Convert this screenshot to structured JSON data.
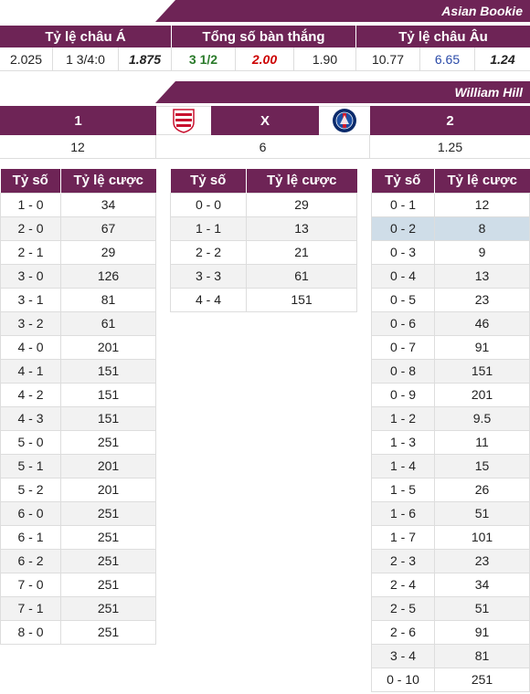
{
  "asian_bookie": {
    "title": "Asian Bookie",
    "headers": [
      "Tỷ lệ châu Á",
      "Tổng số bàn thắng",
      "Tỷ lệ châu Âu"
    ],
    "values": [
      "2.025",
      "1 3/4:0",
      "1.875",
      "3 1/2",
      "2.00",
      "1.90",
      "10.77",
      "6.65",
      "1.24"
    ]
  },
  "william_hill": {
    "title": "William Hill",
    "headers": [
      "1",
      "X",
      "2"
    ],
    "values": [
      "12",
      "6",
      "1.25"
    ]
  },
  "colors": {
    "header_bg": "#6e2456",
    "highlight": "#cfdde8"
  },
  "correct_score": {
    "col_score": "Tỷ số",
    "col_odds": "Tỷ lệ cược",
    "home_wins": [
      [
        "1 - 0",
        "34"
      ],
      [
        "2 - 0",
        "67"
      ],
      [
        "2 - 1",
        "29"
      ],
      [
        "3 - 0",
        "126"
      ],
      [
        "3 - 1",
        "81"
      ],
      [
        "3 - 2",
        "61"
      ],
      [
        "4 - 0",
        "201"
      ],
      [
        "4 - 1",
        "151"
      ],
      [
        "4 - 2",
        "151"
      ],
      [
        "4 - 3",
        "151"
      ],
      [
        "5 - 0",
        "251"
      ],
      [
        "5 - 1",
        "201"
      ],
      [
        "5 - 2",
        "201"
      ],
      [
        "6 - 0",
        "251"
      ],
      [
        "6 - 1",
        "251"
      ],
      [
        "6 - 2",
        "251"
      ],
      [
        "7 - 0",
        "251"
      ],
      [
        "7 - 1",
        "251"
      ],
      [
        "8 - 0",
        "251"
      ]
    ],
    "draws": [
      [
        "0 - 0",
        "29"
      ],
      [
        "1 - 1",
        "13"
      ],
      [
        "2 - 2",
        "21"
      ],
      [
        "3 - 3",
        "61"
      ],
      [
        "4 - 4",
        "151"
      ]
    ],
    "away_wins": [
      [
        "0 - 1",
        "12"
      ],
      [
        "0 - 2",
        "8"
      ],
      [
        "0 - 3",
        "9"
      ],
      [
        "0 - 4",
        "13"
      ],
      [
        "0 - 5",
        "23"
      ],
      [
        "0 - 6",
        "46"
      ],
      [
        "0 - 7",
        "91"
      ],
      [
        "0 - 8",
        "151"
      ],
      [
        "0 - 9",
        "201"
      ],
      [
        "1 - 2",
        "9.5"
      ],
      [
        "1 - 3",
        "11"
      ],
      [
        "1 - 4",
        "15"
      ],
      [
        "1 - 5",
        "26"
      ],
      [
        "1 - 6",
        "51"
      ],
      [
        "1 - 7",
        "101"
      ],
      [
        "2 - 3",
        "23"
      ],
      [
        "2 - 4",
        "34"
      ],
      [
        "2 - 5",
        "51"
      ],
      [
        "2 - 6",
        "91"
      ],
      [
        "3 - 4",
        "81"
      ],
      [
        "0 - 10",
        "251"
      ]
    ],
    "away_highlight_index": 1
  }
}
